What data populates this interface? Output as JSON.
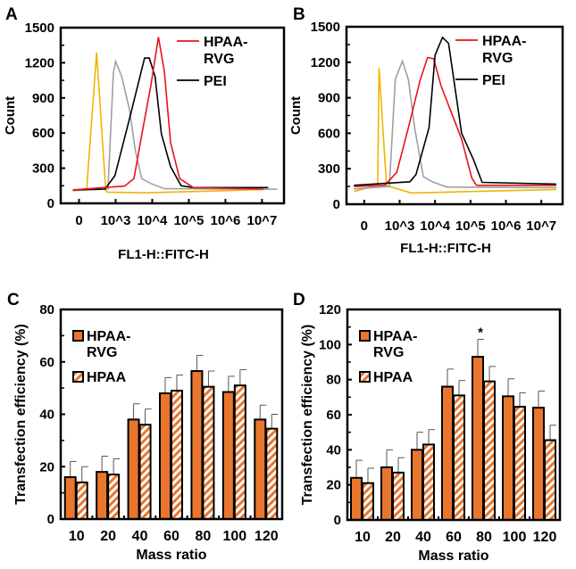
{
  "chart_data": [
    {
      "panel": "A",
      "type": "line",
      "ylabel": "Count",
      "xlabel": "FL1-H::FITC-H",
      "x_scale": "log10 exponent (tick '0' drawn at exponent 2)",
      "xlim": [
        1.5,
        7.6
      ],
      "ylim": [
        0,
        1500
      ],
      "yticks": [
        0,
        300,
        600,
        900,
        1200,
        1500
      ],
      "xticks": [
        {
          "x": 2,
          "label": "0"
        },
        {
          "x": 3,
          "label": "10^3"
        },
        {
          "x": 4,
          "label": "10^4"
        },
        {
          "x": 5,
          "label": "10^5"
        },
        {
          "x": 6,
          "label": "10^6"
        },
        {
          "x": 7,
          "label": "10^7"
        }
      ],
      "legend_position": "top-right",
      "series": [
        {
          "color": "#F2B400",
          "x": [
            1.83,
            2.21,
            2.48,
            2.73,
            2.78,
            3.79,
            5.63,
            7.04
          ],
          "y": [
            105,
            125,
            1288,
            110,
            95,
            90,
            105,
            118
          ]
        },
        {
          "color": "#A0A0A0",
          "x": [
            1.83,
            2.79,
            2.94,
            3.0,
            3.17,
            3.38,
            3.54,
            3.71,
            3.96,
            4.33,
            7.42
          ],
          "y": [
            110,
            122,
            1117,
            1212,
            1080,
            800,
            450,
            212,
            170,
            125,
            120
          ]
        },
        {
          "name": "PEI",
          "color": "#000000",
          "x": [
            1.83,
            2.71,
            2.98,
            3.38,
            3.79,
            3.92,
            4.08,
            4.25,
            4.5,
            4.79,
            5.12,
            7.17
          ],
          "y": [
            115,
            122,
            237,
            722,
            1240,
            1240,
            1080,
            594,
            314,
            150,
            135,
            135
          ]
        },
        {
          "name": "HPAA-RVG",
          "color": "#E8141C",
          "x": [
            1.83,
            3.25,
            3.5,
            3.71,
            3.96,
            4.17,
            4.33,
            4.5,
            4.75,
            5.12,
            7.04
          ],
          "y": [
            115,
            148,
            212,
            580,
            1000,
            1420,
            1130,
            518,
            212,
            135,
            122
          ]
        }
      ]
    },
    {
      "panel": "B",
      "type": "line",
      "ylabel": "Count",
      "xlabel": "FL1-H::FITC-H",
      "x_scale": "log10 exponent (tick '0' drawn at exponent 2)",
      "xlim": [
        1.5,
        7.6
      ],
      "ylim": [
        0,
        1500
      ],
      "yticks": [
        0,
        300,
        600,
        900,
        1200,
        1500
      ],
      "xticks": [
        {
          "x": 2,
          "label": "0"
        },
        {
          "x": 3,
          "label": "10^3"
        },
        {
          "x": 4,
          "label": "10^4"
        },
        {
          "x": 5,
          "label": "10^5"
        },
        {
          "x": 6,
          "label": "10^6"
        },
        {
          "x": 7,
          "label": "10^7"
        }
      ],
      "legend_position": "top-right",
      "series": [
        {
          "color": "#F2B400",
          "x": [
            1.71,
            2.38,
            2.42,
            2.63,
            3.33,
            7.42
          ],
          "y": [
            108,
            160,
            1150,
            158,
            95,
            125
          ]
        },
        {
          "color": "#A0A0A0",
          "x": [
            1.71,
            2.71,
            2.88,
            3.08,
            3.25,
            3.42,
            3.67,
            3.92,
            4.33,
            7.42
          ],
          "y": [
            130,
            150,
            1060,
            1210,
            1050,
            650,
            233,
            190,
            145,
            140
          ]
        },
        {
          "name": "HPAA-RVG",
          "color": "#E8141C",
          "x": [
            1.71,
            2.58,
            2.92,
            3.25,
            3.58,
            3.79,
            3.96,
            4.17,
            4.75,
            5.04,
            5.17,
            7.42
          ],
          "y": [
            150,
            160,
            270,
            650,
            1050,
            1240,
            1230,
            1000,
            550,
            220,
            160,
            160
          ]
        },
        {
          "name": "PEI",
          "color": "#000000",
          "x": [
            1.71,
            3.29,
            3.46,
            3.83,
            4.0,
            4.21,
            4.38,
            4.75,
            5.08,
            5.33,
            7.42
          ],
          "y": [
            160,
            190,
            250,
            645,
            1260,
            1410,
            1360,
            600,
            380,
            185,
            170
          ]
        }
      ]
    },
    {
      "panel": "C",
      "type": "bar",
      "ylabel": "Transfection efficiency (%)",
      "xlabel": "Mass ratio",
      "ylim": [
        0,
        80
      ],
      "yticks": [
        0,
        20,
        40,
        60,
        80
      ],
      "categories": [
        "10",
        "20",
        "40",
        "60",
        "80",
        "100",
        "120"
      ],
      "legend_position": "top-left",
      "series": [
        {
          "name": "HPAA-RVG",
          "fill": "solid",
          "values": [
            16,
            18,
            38,
            48,
            56.5,
            48.5,
            38
          ],
          "errors": [
            6,
            6,
            6,
            6,
            6,
            6,
            5.5
          ]
        },
        {
          "name": "HPAA",
          "fill": "striped",
          "values": [
            14,
            17,
            36,
            49,
            50.5,
            51,
            34.5
          ],
          "errors": [
            6,
            6,
            6,
            6,
            6,
            6,
            5.5
          ]
        }
      ],
      "annotations": []
    },
    {
      "panel": "D",
      "type": "bar",
      "ylabel": "Transfection efficiency (%)",
      "xlabel": "Mass ratio",
      "ylim": [
        0,
        120
      ],
      "yticks": [
        0,
        20,
        40,
        60,
        80,
        100,
        120
      ],
      "categories": [
        "10",
        "20",
        "40",
        "60",
        "80",
        "100",
        "120"
      ],
      "legend_position": "top-left",
      "series": [
        {
          "name": "HPAA-RVG",
          "fill": "solid",
          "values": [
            24,
            30,
            40,
            76,
            93,
            70.5,
            64
          ],
          "errors": [
            10,
            10,
            10,
            10,
            10,
            10,
            9.5
          ]
        },
        {
          "name": "HPAA",
          "fill": "striped",
          "values": [
            21,
            27,
            43,
            71,
            79,
            64.5,
            45.5
          ],
          "errors": [
            8.5,
            8.5,
            8.5,
            8.5,
            8.5,
            8,
            8.5
          ]
        }
      ],
      "annotations": [
        {
          "category": "80",
          "series": "HPAA-RVG",
          "text": "*"
        }
      ]
    }
  ],
  "colors": {
    "bar": "#E8762D",
    "bar_edge": "#000000"
  }
}
